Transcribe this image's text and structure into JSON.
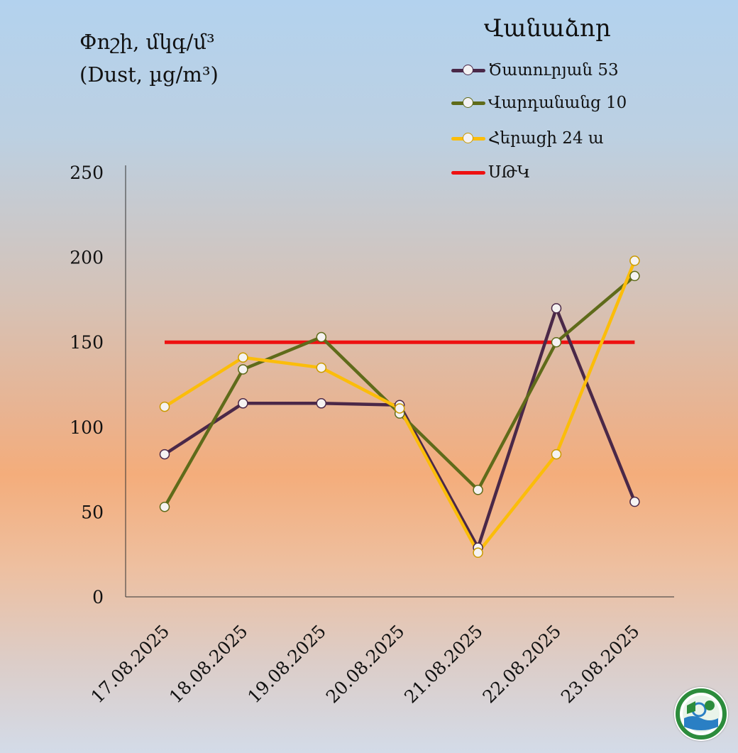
{
  "header": {
    "title_line1": "Փոշի, մկգ/մ³",
    "title_line2": "(Dust, µg/m³)"
  },
  "legend": {
    "title": "Վանաձոր"
  },
  "chart_data": {
    "type": "line",
    "title": "Փոշի, մկգ/մ³ (Dust, µg/m³)",
    "categories": [
      "17.08.2025",
      "18.08.2025",
      "19.08.2025",
      "20.08.2025",
      "21.08.2025",
      "22.08.2025",
      "23.08.2025"
    ],
    "ylim": [
      0,
      250
    ],
    "yticks": [
      "0",
      "50",
      "100",
      "150",
      "200",
      "250"
    ],
    "legend_position": "top-right",
    "series": [
      {
        "name": "Ծատուրյան 53",
        "color": "#4a2848",
        "values": [
          84,
          114,
          114,
          113,
          29,
          170,
          56
        ]
      },
      {
        "name": "Վարդանանց 10",
        "color": "#5f6b1a",
        "values": [
          53,
          134,
          153,
          108,
          63,
          150,
          189
        ]
      },
      {
        "name": "Հերացի 24 ա",
        "color": "#fbbd0a",
        "values": [
          112,
          141,
          135,
          111,
          26,
          84,
          198
        ]
      }
    ],
    "threshold": {
      "name": "ՍԹԿ",
      "color": "#ee1111",
      "value": 150
    }
  }
}
